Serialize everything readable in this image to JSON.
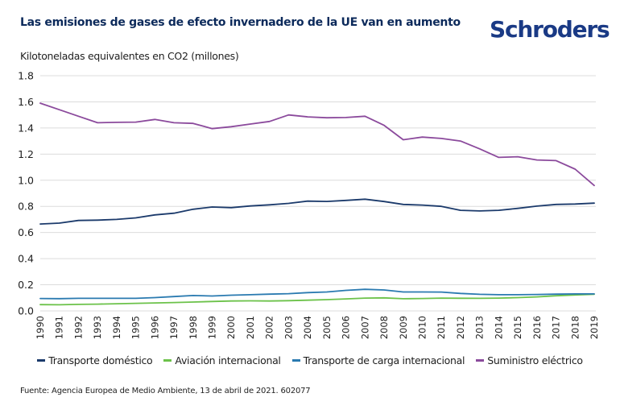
{
  "header": {
    "title": "Las emisiones de gases de efecto invernadero de la UE van en aumento",
    "logo_text": "Schroders"
  },
  "footer": {
    "source": "Fuente: Agencia Europea de Medio Ambiente, 13 de abril de 2021. 602077"
  },
  "chart_data": {
    "type": "line",
    "title": "Las emisiones de gases de efecto invernadero de la UE van en aumento",
    "xlabel": "",
    "ylabel": "Kilotoneladas equivalentes en CO2 (millones)",
    "ylim": [
      0,
      1.8
    ],
    "yticks": [
      "0.0",
      "0.2",
      "0.4",
      "0.6",
      "0.8",
      "1.0",
      "1.2",
      "1.4",
      "1.6",
      "1.8"
    ],
    "ytick_values": [
      0,
      0.2,
      0.4,
      0.6,
      0.8,
      1.0,
      1.2,
      1.4,
      1.6,
      1.8
    ],
    "grid": true,
    "legend_position": "bottom",
    "x": [
      "1990",
      "1991",
      "1992",
      "1993",
      "1994",
      "1995",
      "1996",
      "1997",
      "1998",
      "1999",
      "2000",
      "2001",
      "2002",
      "2003",
      "2004",
      "2005",
      "2006",
      "2007",
      "2008",
      "2009",
      "2010",
      "2011",
      "2012",
      "2013",
      "2014",
      "2015",
      "2016",
      "2017",
      "2018",
      "2019"
    ],
    "series": [
      {
        "name": "Transporte doméstico",
        "color": "#1b3a6b",
        "values": [
          0.665,
          0.672,
          0.692,
          0.695,
          0.7,
          0.712,
          0.735,
          0.748,
          0.778,
          0.795,
          0.79,
          0.803,
          0.812,
          0.823,
          0.84,
          0.838,
          0.846,
          0.855,
          0.837,
          0.815,
          0.81,
          0.8,
          0.77,
          0.765,
          0.77,
          0.785,
          0.802,
          0.815,
          0.818,
          0.825
        ]
      },
      {
        "name": "Aviación internacional",
        "color": "#6cc24a",
        "values": [
          0.048,
          0.047,
          0.05,
          0.052,
          0.055,
          0.058,
          0.061,
          0.064,
          0.068,
          0.072,
          0.076,
          0.077,
          0.076,
          0.078,
          0.082,
          0.086,
          0.092,
          0.098,
          0.1,
          0.093,
          0.095,
          0.098,
          0.097,
          0.096,
          0.098,
          0.102,
          0.107,
          0.116,
          0.122,
          0.127
        ]
      },
      {
        "name": "Transporte de carga internacional",
        "color": "#2a7ab0",
        "values": [
          0.095,
          0.094,
          0.096,
          0.096,
          0.096,
          0.096,
          0.102,
          0.11,
          0.118,
          0.114,
          0.12,
          0.124,
          0.128,
          0.132,
          0.14,
          0.145,
          0.157,
          0.165,
          0.16,
          0.145,
          0.145,
          0.144,
          0.134,
          0.127,
          0.124,
          0.124,
          0.126,
          0.128,
          0.13,
          0.13
        ]
      },
      {
        "name": "Suministro eléctrico",
        "color": "#8b4a9c",
        "values": [
          1.59,
          1.54,
          1.49,
          1.44,
          1.443,
          1.445,
          1.465,
          1.44,
          1.435,
          1.395,
          1.41,
          1.43,
          1.45,
          1.5,
          1.485,
          1.478,
          1.48,
          1.49,
          1.42,
          1.31,
          1.33,
          1.32,
          1.3,
          1.24,
          1.175,
          1.18,
          1.155,
          1.15,
          1.085,
          0.96
        ]
      }
    ]
  }
}
